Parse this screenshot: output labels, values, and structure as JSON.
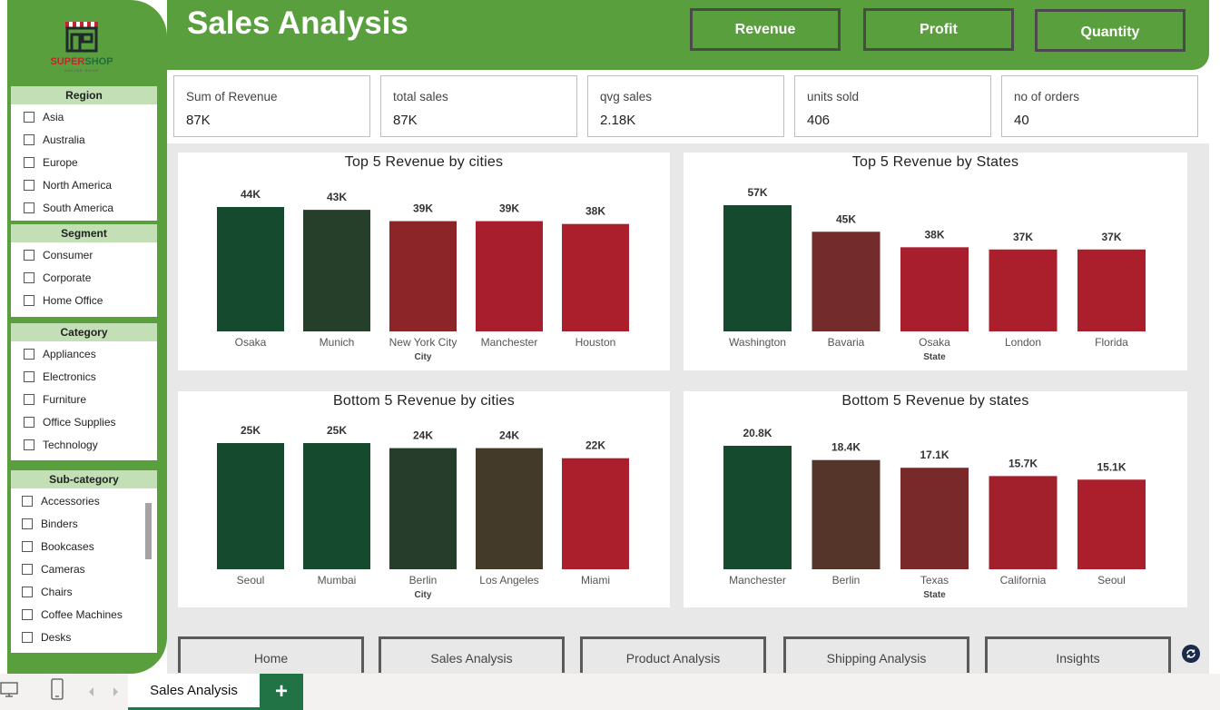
{
  "logo": {
    "brand_a": "SUPER",
    "brand_b": "SHOP",
    "tagline": "ONLINE SHOP"
  },
  "header": {
    "title": "Sales Analysis",
    "buttons": [
      "Revenue",
      "Profit",
      "Quantity"
    ],
    "color": "#5a9f3d"
  },
  "slicers": {
    "region": {
      "title": "Region",
      "items": [
        "Asia",
        "Australia",
        "Europe",
        "North America",
        "South America"
      ]
    },
    "segment": {
      "title": "Segment",
      "items": [
        "Consumer",
        "Corporate",
        "Home Office"
      ]
    },
    "category": {
      "title": "Category",
      "items": [
        "Appliances",
        "Electronics",
        "Furniture",
        "Office Supplies",
        "Technology"
      ]
    },
    "subcategory": {
      "title": "Sub-category",
      "items": [
        "Accessories",
        "Binders",
        "Bookcases",
        "Cameras",
        "Chairs",
        "Coffee Machines",
        "Desks"
      ]
    }
  },
  "kpis": [
    {
      "label": "Sum of Revenue",
      "value": "87K"
    },
    {
      "label": "total sales",
      "value": "87K"
    },
    {
      "label": "qvg sales",
      "value": "2.18K"
    },
    {
      "label": "units sold",
      "value": "406"
    },
    {
      "label": "no of orders",
      "value": "40"
    }
  ],
  "chart_data": [
    {
      "type": "bar",
      "title": "Top 5 Revenue by cities",
      "xlabel": "City",
      "categories": [
        "Osaka",
        "Munich",
        "New York City",
        "Manchester",
        "Houston"
      ],
      "values": [
        44,
        43,
        39,
        39,
        38
      ],
      "labels": [
        "44K",
        "43K",
        "39K",
        "39K",
        "38K"
      ],
      "colors": [
        "#154a2e",
        "#263f2a",
        "#8b2528",
        "#a91e2c",
        "#ab1e2c"
      ]
    },
    {
      "type": "bar",
      "title": "Top 5 Revenue by States",
      "xlabel": "State",
      "categories": [
        "Washington",
        "Bavaria",
        "Osaka",
        "London",
        "Florida"
      ],
      "values": [
        57,
        45,
        38,
        37,
        37
      ],
      "labels": [
        "57K",
        "45K",
        "38K",
        "37K",
        "37K"
      ],
      "colors": [
        "#154a2e",
        "#732b2b",
        "#a91e2c",
        "#ab1e2c",
        "#ab1e2c"
      ]
    },
    {
      "type": "bar",
      "title": "Bottom 5 Revenue by cities",
      "xlabel": "City",
      "categories": [
        "Seoul",
        "Mumbai",
        "Berlin",
        "Los Angeles",
        "Miami"
      ],
      "values": [
        25,
        25,
        24,
        24,
        22
      ],
      "labels": [
        "25K",
        "25K",
        "24K",
        "24K",
        "22K"
      ],
      "colors": [
        "#154a2e",
        "#164a2e",
        "#253d2a",
        "#433a2a",
        "#ab1e2c"
      ]
    },
    {
      "type": "bar",
      "title": "Bottom 5 Revenue by states",
      "xlabel": "State",
      "categories": [
        "Manchester",
        "Berlin",
        "Texas",
        "California",
        "Seoul"
      ],
      "values": [
        20.8,
        18.4,
        17.1,
        15.7,
        15.1
      ],
      "labels": [
        "20.8K",
        "18.4K",
        "17.1K",
        "15.7K",
        "15.1K"
      ],
      "colors": [
        "#154a2e",
        "#55342a",
        "#7a292b",
        "#a21f2c",
        "#ab1e2c"
      ]
    }
  ],
  "nav": [
    "Home",
    "Sales Analysis",
    "Product Analysis",
    "Shipping Analysis",
    "Insights"
  ],
  "footer": {
    "tab": "Sales Analysis",
    "add": "+"
  }
}
